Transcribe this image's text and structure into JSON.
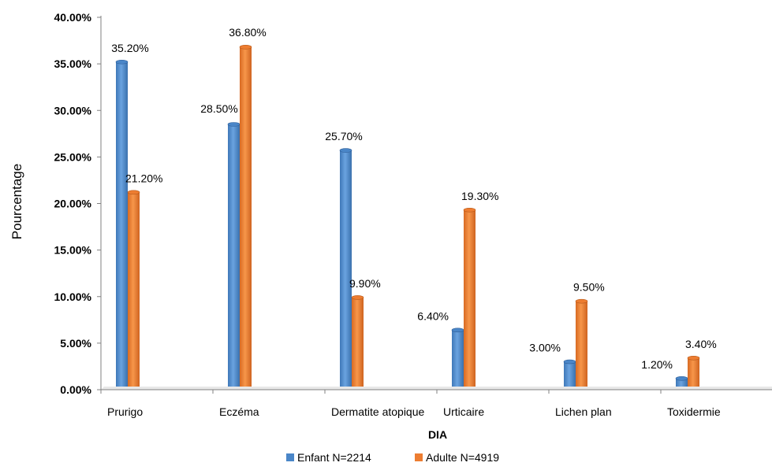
{
  "chart_data": {
    "type": "bar",
    "title": "",
    "xlabel": "DIA",
    "ylabel": "Pourcentage",
    "categories": [
      "Prurigo",
      "Eczéma",
      "Dermatite atopique",
      "Urticaire",
      "Lichen plan",
      "Toxidermie"
    ],
    "series": [
      {
        "name": "Enfant N=2214",
        "color": "#4a86c8",
        "values": [
          35.2,
          28.5,
          25.7,
          6.4,
          3.0,
          1.2
        ],
        "labels": [
          "35.20%",
          "28.50%",
          "25.70%",
          "6.40%",
          "3.00%",
          "1.20%"
        ]
      },
      {
        "name": "Adulte N=4919",
        "color": "#ed7d31",
        "values": [
          21.2,
          36.8,
          9.9,
          19.3,
          9.5,
          3.4
        ],
        "labels": [
          "21.20%",
          "36.80%",
          "9.90%",
          "19.30%",
          "9.50%",
          "3.40%"
        ]
      }
    ],
    "ylim": [
      0,
      40
    ],
    "yticks": [
      "0.00%",
      "5.00%",
      "10.00%",
      "15.00%",
      "20.00%",
      "25.00%",
      "30.00%",
      "35.00%",
      "40.00%"
    ],
    "grid": false,
    "legend": "bottom",
    "axis_color": "#808080"
  }
}
